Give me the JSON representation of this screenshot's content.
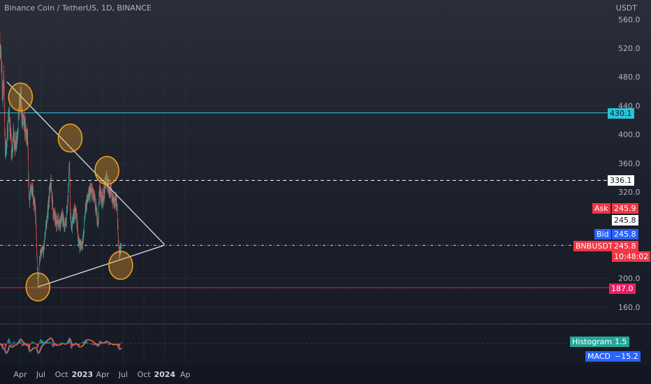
{
  "legend": {
    "title": "Binance Coin / TetherUS, 1D, BINANCE"
  },
  "price_axis": {
    "unit": "USDT",
    "ticks": [
      "560.0",
      "520.0",
      "480.0",
      "440.0",
      "400.0",
      "360.0",
      "320.0",
      "200.0",
      "160.0"
    ]
  },
  "time_axis": {
    "ticks": [
      "Apr",
      "Jul",
      "Oct",
      "2023",
      "Apr",
      "Jul",
      "Oct",
      "2024",
      "Ap"
    ]
  },
  "colors": {
    "up": "#26a69a",
    "down": "#ef5350",
    "resistance": "#26c6da",
    "support": "#e91e63",
    "trendline": "#d1d4dc",
    "circle": "#f5a623",
    "macd": "#2962ff",
    "signal": "#ff6d00",
    "ask": "#f23645",
    "bid": "#2962ff"
  },
  "badges": {
    "resistance": "430.1",
    "dashed_level": "336.1",
    "ask_label": "Ask",
    "ask_value": "245.9",
    "mid_value": "245.8",
    "bid_label": "Bid",
    "bid_value": "245.8",
    "symbol": "BNBUSDT",
    "symbol_price": "245.8",
    "countdown": "10:48:02",
    "support": "187.0"
  },
  "indicator": {
    "histogram_label": "Histogram",
    "histogram_value": "1.5",
    "macd_label": "MACD",
    "macd_value": "−15.2"
  },
  "chart_data": {
    "type": "candlestick",
    "title": "Binance Coin / TetherUS, 1D, BINANCE",
    "ylim": [
      140,
      580
    ],
    "y_unit": "USDT",
    "levels": {
      "resistance": 430.1,
      "dashed_upper": 336.1,
      "current": 245.8,
      "support": 187.0
    },
    "price_path": [
      [
        "2022-01-01",
        530
      ],
      [
        "2022-01-06",
        500
      ],
      [
        "2022-01-12",
        455
      ],
      [
        "2022-01-18",
        480
      ],
      [
        "2022-01-24",
        375
      ],
      [
        "2022-02-01",
        390
      ],
      [
        "2022-02-08",
        430
      ],
      [
        "2022-02-14",
        415
      ],
      [
        "2022-02-22",
        365
      ],
      [
        "2022-03-01",
        400
      ],
      [
        "2022-03-10",
        385
      ],
      [
        "2022-03-18",
        400
      ],
      [
        "2022-03-28",
        440
      ],
      [
        "2022-04-02",
        450
      ],
      [
        "2022-04-10",
        420
      ],
      [
        "2022-04-18",
        415
      ],
      [
        "2022-04-26",
        400
      ],
      [
        "2022-05-03",
        390
      ],
      [
        "2022-05-10",
        310
      ],
      [
        "2022-05-17",
        320
      ],
      [
        "2022-05-24",
        330
      ],
      [
        "2022-05-31",
        305
      ],
      [
        "2022-06-07",
        295
      ],
      [
        "2022-06-14",
        225
      ],
      [
        "2022-06-18",
        190
      ],
      [
        "2022-06-26",
        230
      ],
      [
        "2022-07-05",
        235
      ],
      [
        "2022-07-14",
        240
      ],
      [
        "2022-07-22",
        270
      ],
      [
        "2022-07-30",
        285
      ],
      [
        "2022-08-08",
        320
      ],
      [
        "2022-08-15",
        330
      ],
      [
        "2022-08-25",
        290
      ],
      [
        "2022-09-05",
        280
      ],
      [
        "2022-09-15",
        280
      ],
      [
        "2022-09-25",
        280
      ],
      [
        "2022-10-05",
        285
      ],
      [
        "2022-10-15",
        270
      ],
      [
        "2022-10-25",
        290
      ],
      [
        "2022-11-05",
        360
      ],
      [
        "2022-11-09",
        290
      ],
      [
        "2022-11-15",
        270
      ],
      [
        "2022-11-25",
        290
      ],
      [
        "2022-12-05",
        290
      ],
      [
        "2022-12-15",
        250
      ],
      [
        "2022-12-25",
        245
      ],
      [
        "2023-01-05",
        255
      ],
      [
        "2023-01-15",
        300
      ],
      [
        "2023-01-25",
        310
      ],
      [
        "2023-02-05",
        320
      ],
      [
        "2023-02-15",
        320
      ],
      [
        "2023-02-25",
        305
      ],
      [
        "2023-03-05",
        290
      ],
      [
        "2023-03-12",
        280
      ],
      [
        "2023-03-18",
        325
      ],
      [
        "2023-03-28",
        310
      ],
      [
        "2023-04-05",
        315
      ],
      [
        "2023-04-18",
        340
      ],
      [
        "2023-04-25",
        330
      ],
      [
        "2023-05-05",
        320
      ],
      [
        "2023-05-15",
        310
      ],
      [
        "2023-05-25",
        305
      ],
      [
        "2023-06-03",
        305
      ],
      [
        "2023-06-08",
        265
      ],
      [
        "2023-06-12",
        235
      ],
      [
        "2023-06-18",
        238
      ],
      [
        "2023-06-24",
        245
      ]
    ],
    "trendlines": [
      {
        "name": "descending resistance",
        "from": [
          "2022-02-01",
          473
        ],
        "to": [
          "2023-12-31",
          247
        ]
      },
      {
        "name": "ascending support",
        "from": [
          "2022-06-18",
          188
        ],
        "to": [
          "2023-12-31",
          246
        ]
      }
    ],
    "highlights": [
      [
        "2022-04-02",
        452
      ],
      [
        "2022-11-08",
        395
      ],
      [
        "2023-04-20",
        350
      ],
      [
        "2023-06-20",
        218
      ],
      [
        "2022-06-18",
        188
      ]
    ]
  }
}
